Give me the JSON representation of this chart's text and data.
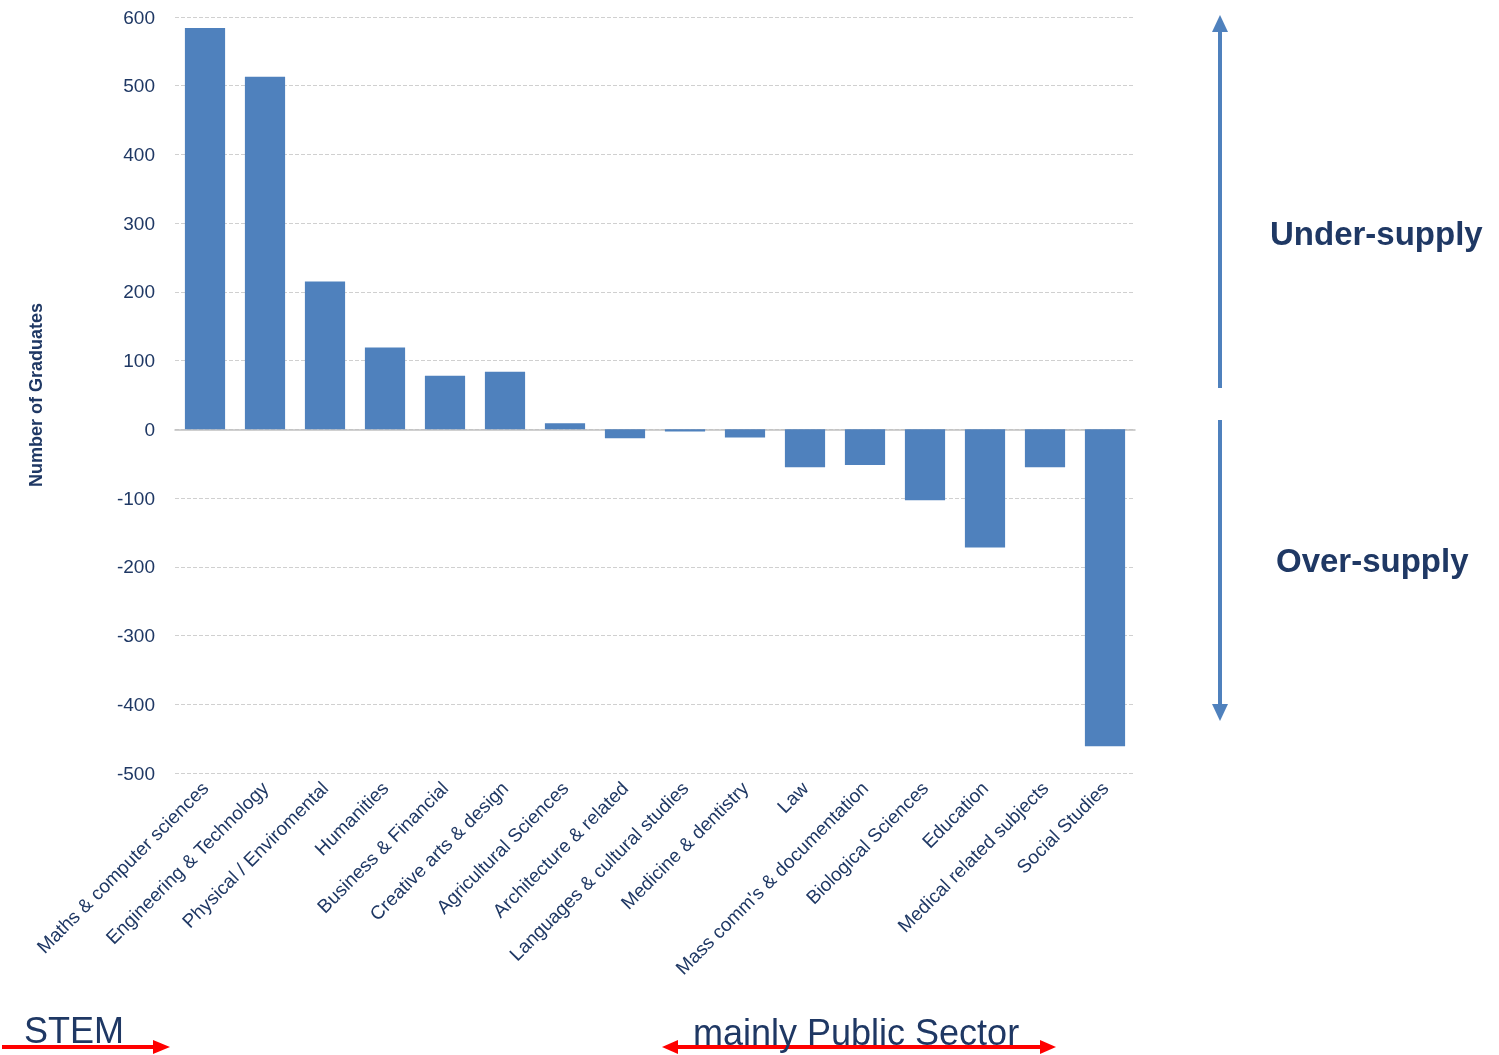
{
  "chart_data": {
    "type": "bar",
    "ylabel": "Number of Graduates",
    "categories": [
      "Maths & computer sciences",
      "Engineering & Technology",
      "Physical / Enviromental",
      "Humanities",
      "Business & Financial",
      "Creative arts & design",
      "Agricultural Sciences",
      "Architecture & related",
      "Languages & cultural studies",
      "Medicine & dentistry",
      "Law",
      "Mass comm's & documentation",
      "Biological Sciences",
      "Education",
      "Medical related subjects",
      "Social Studies"
    ],
    "values": [
      584,
      513,
      215,
      119,
      78,
      84,
      9,
      -13,
      -3,
      -12,
      -55,
      -52,
      -103,
      -172,
      -55,
      -461
    ],
    "color": "#4f81bd",
    "ylim": [
      -500,
      600
    ],
    "yticks": [
      -500,
      -400,
      -300,
      -200,
      -100,
      0,
      100,
      200,
      300,
      400,
      500,
      600
    ],
    "grid": "y",
    "annotations": [
      "Under-supply",
      "Over-supply",
      "STEM",
      "mainly Public Sector"
    ]
  }
}
